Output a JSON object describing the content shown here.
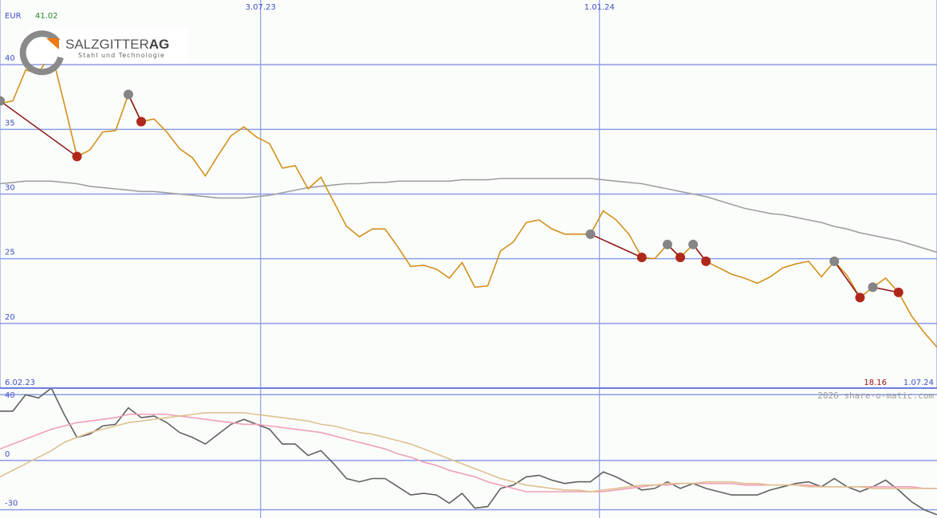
{
  "logo": {
    "name": "SALZGITTER",
    "suffix": "AG",
    "tagline": "Stahl und Technologie"
  },
  "credit": "2026 share-o-matic.com",
  "chart_data": [
    {
      "type": "line",
      "unit": "EUR",
      "high": 41.02,
      "last": 18.16,
      "x": [
        0,
        1,
        2,
        3,
        4,
        5,
        6,
        7,
        8,
        9,
        10,
        11,
        12,
        13,
        14,
        15,
        16,
        17,
        18,
        19,
        20,
        21,
        22,
        23,
        24,
        25,
        26,
        27,
        28,
        29,
        30,
        31,
        32,
        33,
        34,
        35,
        36,
        37,
        38,
        39,
        40,
        41,
        42,
        43,
        44,
        45,
        46,
        47,
        48,
        49,
        50,
        51,
        52,
        53,
        54,
        55,
        56,
        57,
        58,
        59,
        60,
        61,
        62,
        63,
        64,
        65,
        66,
        67,
        68,
        69,
        70,
        71,
        72,
        73
      ],
      "xlim": [
        0,
        73
      ],
      "xticks": [
        {
          "value": 0,
          "label": "6.02.23"
        },
        {
          "value": 20.3,
          "label": "3.07.23"
        },
        {
          "value": 46.7,
          "label": "1.01.24"
        },
        {
          "value": 73,
          "label": "1.07.24"
        }
      ],
      "ylim": [
        15,
        45
      ],
      "yticks": [
        20,
        25,
        30,
        35,
        40
      ],
      "grid": true,
      "series": [
        {
          "color": "#d4901a",
          "values": [
            37.0,
            37.2,
            39.6,
            39.3,
            41.02,
            37.0,
            32.9,
            33.4,
            34.8,
            34.9,
            37.7,
            35.6,
            35.8,
            34.8,
            33.5,
            32.8,
            31.4,
            33.0,
            34.5,
            35.2,
            34.4,
            33.9,
            32.0,
            32.2,
            30.4,
            31.3,
            29.4,
            27.5,
            26.7,
            27.3,
            27.3,
            25.9,
            24.4,
            24.5,
            24.2,
            23.5,
            24.7,
            22.8,
            22.9,
            25.6,
            26.3,
            27.8,
            28.0,
            27.3,
            26.9,
            26.9,
            26.9,
            28.7,
            28.0,
            26.9,
            25.1,
            25.0,
            26.1,
            25.1,
            26.1,
            24.8,
            24.3,
            23.8,
            23.5,
            23.1,
            23.6,
            24.3,
            24.6,
            24.8,
            23.6,
            24.8,
            23.7,
            22.0,
            22.8,
            23.5,
            22.4,
            20.6,
            19.3,
            18.16
          ]
        },
        {
          "color": "#a0a0a0",
          "values": [
            30.8,
            30.9,
            31.0,
            31.0,
            31.0,
            30.9,
            30.8,
            30.6,
            30.5,
            30.4,
            30.3,
            30.2,
            30.2,
            30.1,
            30.0,
            29.9,
            29.8,
            29.7,
            29.7,
            29.7,
            29.8,
            29.9,
            30.1,
            30.3,
            30.5,
            30.6,
            30.7,
            30.8,
            30.8,
            30.9,
            30.9,
            31.0,
            31.0,
            31.0,
            31.0,
            31.0,
            31.1,
            31.1,
            31.1,
            31.2,
            31.2,
            31.2,
            31.2,
            31.2,
            31.2,
            31.2,
            31.2,
            31.1,
            31.0,
            30.9,
            30.8,
            30.6,
            30.4,
            30.2,
            30.0,
            29.8,
            29.5,
            29.2,
            28.9,
            28.7,
            28.5,
            28.4,
            28.2,
            28.0,
            27.8,
            27.5,
            27.3,
            27.0,
            26.8,
            26.6,
            26.4,
            26.1,
            25.8,
            25.5
          ]
        }
      ],
      "signals": {
        "start_x": [
          0,
          10,
          46,
          52,
          54,
          65,
          68
        ],
        "start_values": [
          37.2,
          37.7,
          26.9,
          26.1,
          26.1,
          24.8,
          22.8
        ],
        "end_x": [
          6,
          11,
          50,
          53,
          55,
          67,
          70
        ],
        "end_values": [
          32.9,
          35.6,
          25.1,
          25.1,
          24.8,
          22.0,
          22.4
        ]
      }
    },
    {
      "type": "line",
      "x": [
        0,
        1,
        2,
        3,
        4,
        5,
        6,
        7,
        8,
        9,
        10,
        11,
        12,
        13,
        14,
        15,
        16,
        17,
        18,
        19,
        20,
        21,
        22,
        23,
        24,
        25,
        26,
        27,
        28,
        29,
        30,
        31,
        32,
        33,
        34,
        35,
        36,
        37,
        38,
        39,
        40,
        41,
        42,
        43,
        44,
        45,
        46,
        47,
        48,
        49,
        50,
        51,
        52,
        53,
        54,
        55,
        56,
        57,
        58,
        59,
        60,
        61,
        62,
        63,
        64,
        65,
        66,
        67,
        68,
        69,
        70,
        71,
        72,
        73
      ],
      "xlim": [
        0,
        73
      ],
      "xticks": [
        {
          "value": 20.3,
          "label": "3.07.23"
        },
        {
          "value": 46.7,
          "label": "1.01.24"
        }
      ],
      "ylim": [
        -35,
        44
      ],
      "yticks": [
        40,
        0,
        -30
      ],
      "grid": true,
      "series": [
        {
          "color": "#e0c090",
          "values": [
            -10,
            -6,
            -2,
            2,
            6,
            11,
            14,
            17,
            19,
            21,
            23,
            24,
            25,
            26,
            27,
            28,
            29,
            29,
            29,
            29,
            28,
            27,
            26,
            25,
            24,
            22,
            21,
            19,
            17,
            16,
            14,
            12,
            10,
            7,
            4,
            1,
            -2,
            -5,
            -8,
            -11,
            -13,
            -15,
            -16,
            -17,
            -18,
            -18,
            -19,
            -18,
            -17,
            -16,
            -15,
            -15,
            -14,
            -14,
            -14,
            -13,
            -13,
            -13,
            -14,
            -14,
            -15,
            -15,
            -15,
            -16,
            -16,
            -16,
            -16,
            -16,
            -17,
            -17,
            -17,
            -17,
            -17,
            -17
          ]
        },
        {
          "color": "#f0a0b4",
          "values": [
            7,
            10,
            13,
            16,
            19,
            21,
            23,
            24,
            25,
            26,
            28,
            28,
            28,
            28,
            27,
            26,
            25,
            24,
            23,
            22,
            22,
            21,
            20,
            19,
            18,
            17,
            15,
            13,
            11,
            9,
            7,
            4,
            2,
            -1,
            -3,
            -6,
            -8,
            -10,
            -13,
            -15,
            -17,
            -19,
            -19,
            -19,
            -19,
            -19,
            -19,
            -19,
            -18,
            -17,
            -16,
            -15,
            -15,
            -14,
            -14,
            -14,
            -14,
            -14,
            -15,
            -15,
            -15,
            -15,
            -15,
            -15,
            -16,
            -16,
            -16,
            -16,
            -16,
            -16,
            -16,
            -16,
            -17,
            -17
          ]
        },
        {
          "color": "#606060",
          "values": [
            30,
            30,
            40,
            38,
            44,
            28,
            14,
            16,
            21,
            22,
            32,
            26,
            27,
            23,
            17,
            14,
            10,
            16,
            22,
            25,
            22,
            19,
            10,
            10,
            3,
            6,
            -2,
            -11,
            -13,
            -11,
            -11,
            -16,
            -21,
            -20,
            -21,
            -26,
            -20,
            -29,
            -28,
            -17,
            -15,
            -10,
            -9,
            -12,
            -14,
            -13,
            -13,
            -7,
            -10,
            -14,
            -18,
            -17,
            -13,
            -17,
            -14,
            -17,
            -19,
            -21,
            -21,
            -21,
            -18,
            -16,
            -14,
            -13,
            -16,
            -11,
            -16,
            -19,
            -16,
            -12,
            -18,
            -25,
            -30,
            -33
          ]
        }
      ]
    }
  ]
}
